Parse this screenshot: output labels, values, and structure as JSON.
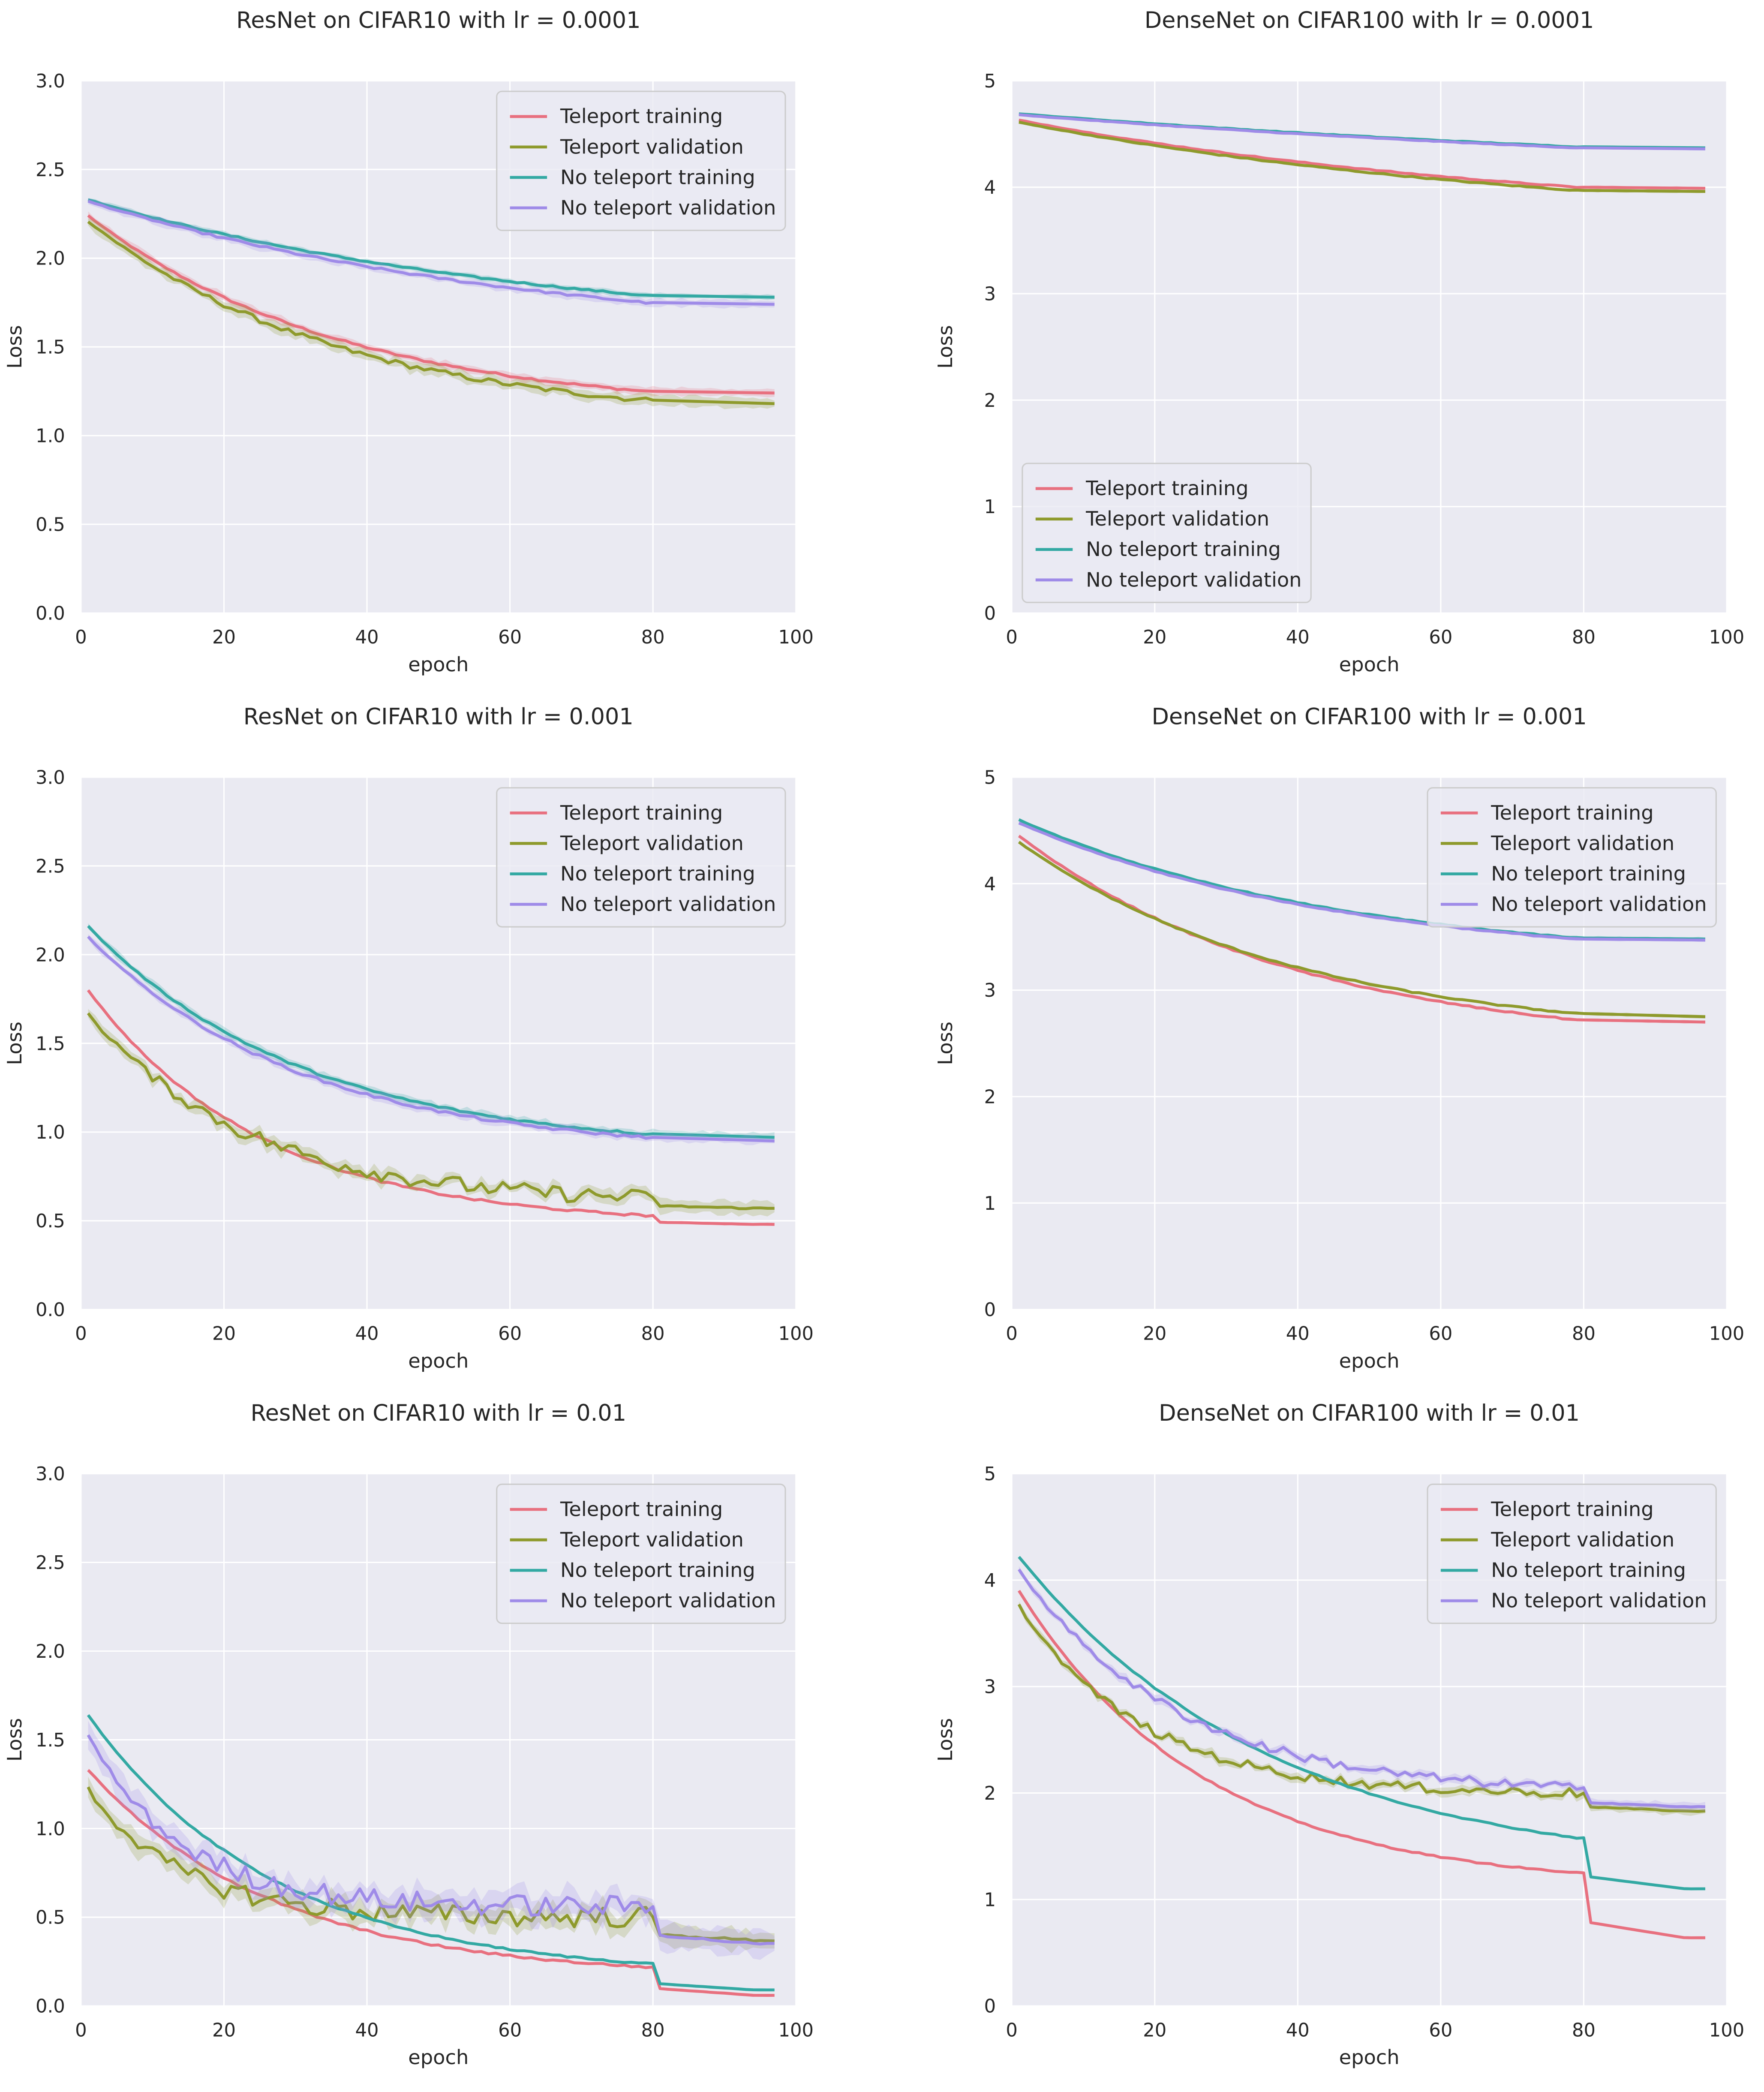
{
  "chart_data": [
    {
      "type": "line",
      "title": "ResNet on CIFAR10 with lr = 0.0001",
      "xlabel": "epoch",
      "ylabel": "Loss",
      "xlim": [
        0,
        100
      ],
      "ylim": [
        0,
        3.0
      ],
      "xticks": [
        0,
        20,
        40,
        60,
        80,
        100
      ],
      "xtick_labels": [
        "0",
        "20",
        "40",
        "60",
        "80",
        "100"
      ],
      "yticks": [
        0,
        0.5,
        1.0,
        1.5,
        2.0,
        2.5,
        3.0
      ],
      "ytick_labels": [
        "0.0",
        "0.5",
        "1.0",
        "1.5",
        "2.0",
        "2.5",
        "3.0"
      ],
      "grid": true,
      "legend": "top-right",
      "series": [
        {
          "name": "Teleport training",
          "start": 2.24,
          "end80": 1.25,
          "end": 1.24,
          "k": 2.2,
          "noise": 0.004,
          "band": 0.03
        },
        {
          "name": "Teleport validation",
          "start": 2.21,
          "end80": 1.2,
          "end": 1.18,
          "k": 2.2,
          "noise": 0.01,
          "band": 0.04
        },
        {
          "name": "No teleport training",
          "start": 2.33,
          "end80": 1.79,
          "end": 1.78,
          "k": 1.2,
          "noise": 0.003,
          "band": 0.02
        },
        {
          "name": "No teleport validation",
          "start": 2.32,
          "end80": 1.75,
          "end": 1.74,
          "k": 1.2,
          "noise": 0.004,
          "band": 0.03
        }
      ]
    },
    {
      "type": "line",
      "title": "DenseNet on CIFAR100 with lr = 0.0001",
      "xlabel": "epoch",
      "ylabel": "Loss",
      "xlim": [
        0,
        100
      ],
      "ylim": [
        0,
        5
      ],
      "xticks": [
        0,
        20,
        40,
        60,
        80,
        100
      ],
      "xtick_labels": [
        "0",
        "20",
        "40",
        "60",
        "80",
        "100"
      ],
      "yticks": [
        0,
        1,
        2,
        3,
        4,
        5
      ],
      "ytick_labels": [
        "0",
        "1",
        "2",
        "3",
        "4",
        "5"
      ],
      "grid": true,
      "legend": "bottom-left",
      "series": [
        {
          "name": "Teleport training",
          "start": 4.63,
          "end80": 4.0,
          "end": 3.99,
          "k": 1.0,
          "noise": 0.003,
          "band": 0.02
        },
        {
          "name": "Teleport validation",
          "start": 4.61,
          "end80": 3.97,
          "end": 3.96,
          "k": 1.0,
          "noise": 0.003,
          "band": 0.02
        },
        {
          "name": "No teleport training",
          "start": 4.69,
          "end80": 4.38,
          "end": 4.37,
          "k": 0.6,
          "noise": 0.002,
          "band": 0.01
        },
        {
          "name": "No teleport validation",
          "start": 4.68,
          "end80": 4.37,
          "end": 4.36,
          "k": 0.6,
          "noise": 0.002,
          "band": 0.01
        }
      ]
    },
    {
      "type": "line",
      "title": "ResNet on CIFAR10 with lr = 0.001",
      "xlabel": "epoch",
      "ylabel": "Loss",
      "xlim": [
        0,
        100
      ],
      "ylim": [
        0,
        3.0
      ],
      "xticks": [
        0,
        20,
        40,
        60,
        80,
        100
      ],
      "xtick_labels": [
        "0",
        "20",
        "40",
        "60",
        "80",
        "100"
      ],
      "yticks": [
        0,
        0.5,
        1.0,
        1.5,
        2.0,
        2.5,
        3.0
      ],
      "ytick_labels": [
        "0.0",
        "0.5",
        "1.0",
        "1.5",
        "2.0",
        "2.5",
        "3.0"
      ],
      "grid": true,
      "legend": "top-right",
      "series": [
        {
          "name": "Teleport training",
          "start": 1.8,
          "end80": 0.53,
          "end": 0.48,
          "k": 3.2,
          "noise": 0.004,
          "band": 0.01
        },
        {
          "name": "Teleport validation",
          "start": 1.67,
          "end80": 0.63,
          "end": 0.57,
          "k": 3.5,
          "noise": 0.03,
          "band": 0.05
        },
        {
          "name": "No teleport training",
          "start": 2.16,
          "end80": 0.99,
          "end": 0.97,
          "k": 2.6,
          "noise": 0.004,
          "band": 0.03
        },
        {
          "name": "No teleport validation",
          "start": 2.1,
          "end80": 0.97,
          "end": 0.95,
          "k": 2.6,
          "noise": 0.005,
          "band": 0.03
        }
      ]
    },
    {
      "type": "line",
      "title": "DenseNet on CIFAR100 with lr = 0.001",
      "xlabel": "epoch",
      "ylabel": "Loss",
      "xlim": [
        0,
        100
      ],
      "ylim": [
        0,
        5
      ],
      "xticks": [
        0,
        20,
        40,
        60,
        80,
        100
      ],
      "xtick_labels": [
        "0",
        "20",
        "40",
        "60",
        "80",
        "100"
      ],
      "yticks": [
        0,
        1,
        2,
        3,
        4,
        5
      ],
      "ytick_labels": [
        "0",
        "1",
        "2",
        "3",
        "4",
        "5"
      ],
      "grid": true,
      "legend": "top-right",
      "series": [
        {
          "name": "Teleport training",
          "start": 4.45,
          "end80": 2.72,
          "end": 2.7,
          "k": 2.0,
          "noise": 0.004,
          "band": 0.02
        },
        {
          "name": "Teleport validation",
          "start": 4.39,
          "end80": 2.78,
          "end": 2.75,
          "k": 2.0,
          "noise": 0.004,
          "band": 0.02
        },
        {
          "name": "No teleport training",
          "start": 4.6,
          "end80": 3.49,
          "end": 3.48,
          "k": 1.7,
          "noise": 0.003,
          "band": 0.02
        },
        {
          "name": "No teleport validation",
          "start": 4.57,
          "end80": 3.48,
          "end": 3.47,
          "k": 1.7,
          "noise": 0.003,
          "band": 0.02
        }
      ]
    },
    {
      "type": "line",
      "title": "ResNet on CIFAR10 with lr = 0.01",
      "xlabel": "epoch",
      "ylabel": "Loss",
      "xlim": [
        0,
        100
      ],
      "ylim": [
        0,
        3.0
      ],
      "xticks": [
        0,
        20,
        40,
        60,
        80,
        100
      ],
      "xtick_labels": [
        "0",
        "20",
        "40",
        "60",
        "80",
        "100"
      ],
      "yticks": [
        0,
        0.5,
        1.0,
        1.5,
        2.0,
        2.5,
        3.0
      ],
      "ytick_labels": [
        "0.0",
        "0.5",
        "1.0",
        "1.5",
        "2.0",
        "2.5",
        "3.0"
      ],
      "grid": true,
      "legend": "top-right",
      "series": [
        {
          "name": "Teleport training",
          "start": 1.33,
          "end80": 0.22,
          "end": 0.06,
          "k": 3.0,
          "noise": 0.004,
          "band": 0.01
        },
        {
          "name": "Teleport validation",
          "start": 1.22,
          "end80": 0.5,
          "end": 0.37,
          "k": 6.0,
          "noise": 0.04,
          "band": 0.08
        },
        {
          "name": "No teleport training",
          "start": 1.64,
          "end80": 0.24,
          "end": 0.09,
          "k": 3.0,
          "noise": 0.003,
          "band": 0.01
        },
        {
          "name": "No teleport validation",
          "start": 1.52,
          "end80": 0.56,
          "end": 0.35,
          "k": 6.0,
          "noise": 0.04,
          "band": 0.1
        }
      ]
    },
    {
      "type": "line",
      "title": "DenseNet on CIFAR100 with lr = 0.01",
      "xlabel": "epoch",
      "ylabel": "Loss",
      "xlim": [
        0,
        100
      ],
      "ylim": [
        0,
        5
      ],
      "xticks": [
        0,
        20,
        40,
        60,
        80,
        100
      ],
      "xtick_labels": [
        "0",
        "20",
        "40",
        "60",
        "80",
        "100"
      ],
      "yticks": [
        0,
        1,
        2,
        3,
        4,
        5
      ],
      "ytick_labels": [
        "0",
        "1",
        "2",
        "3",
        "4",
        "5"
      ],
      "grid": true,
      "legend": "top-right",
      "series": [
        {
          "name": "Teleport training",
          "start": 3.9,
          "end80": 1.25,
          "end": 0.64,
          "k": 3.0,
          "noise": 0.004,
          "band": 0.01
        },
        {
          "name": "Teleport validation",
          "start": 3.76,
          "end80": 2.0,
          "end": 1.83,
          "k": 4.5,
          "noise": 0.03,
          "band": 0.05
        },
        {
          "name": "No teleport training",
          "start": 4.22,
          "end80": 1.58,
          "end": 1.1,
          "k": 2.2,
          "noise": 0.004,
          "band": 0.01
        },
        {
          "name": "No teleport validation",
          "start": 4.1,
          "end80": 2.05,
          "end": 1.87,
          "k": 3.5,
          "noise": 0.03,
          "band": 0.05
        }
      ]
    }
  ],
  "colors": {
    "Teleport training": "#e8707f",
    "Teleport validation": "#8e9a2c",
    "No teleport training": "#33a9a3",
    "No teleport validation": "#9f8be8",
    "axes_bg": "#eaeaf2",
    "grid": "#ffffff"
  }
}
